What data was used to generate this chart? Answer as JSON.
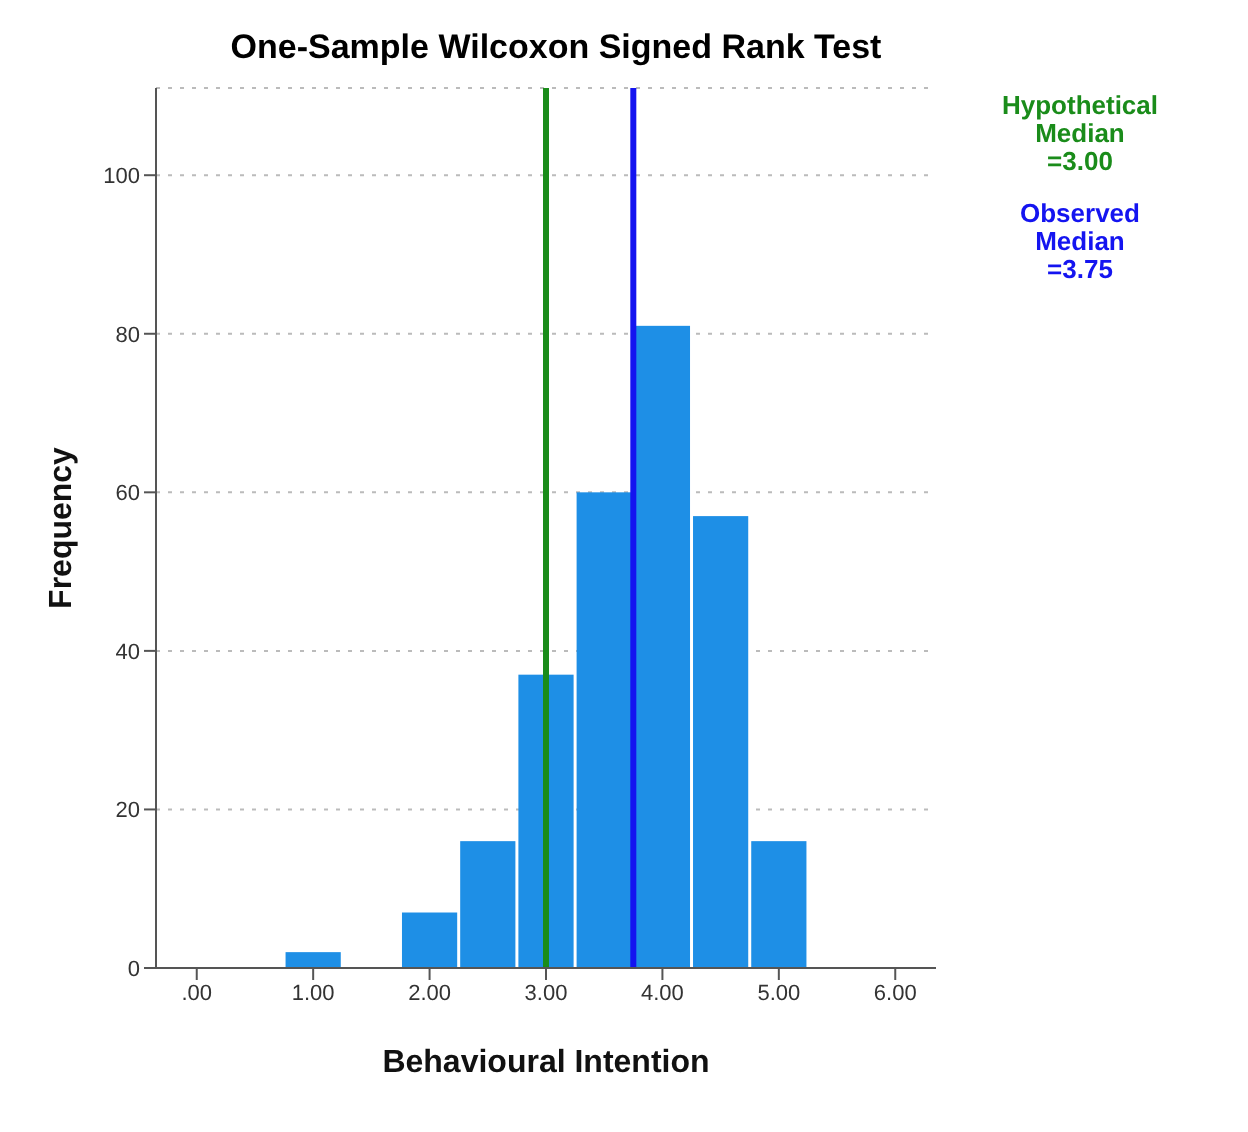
{
  "chart_data": {
    "type": "histogram",
    "title": "One-Sample Wilcoxon Signed Rank Test",
    "xlabel": "Behavioural Intention",
    "ylabel": "Frequency",
    "bins": [
      0.75,
      1.25,
      1.75,
      2.25,
      2.75,
      3.25,
      3.75,
      4.25,
      4.75,
      5.25
    ],
    "values": [
      2,
      0,
      7,
      16,
      37,
      60,
      81,
      57,
      16
    ],
    "color": "#1e8fe6",
    "xlim": [
      -0.35,
      6.35
    ],
    "xticks": [
      {
        "value": 0,
        "label": ".00"
      },
      {
        "value": 1,
        "label": "1.00"
      },
      {
        "value": 2,
        "label": "2.00"
      },
      {
        "value": 3,
        "label": "3.00"
      },
      {
        "value": 4,
        "label": "4.00"
      },
      {
        "value": 5,
        "label": "5.00"
      },
      {
        "value": 6,
        "label": "6.00"
      }
    ],
    "ylim": [
      0,
      111
    ],
    "yticks": [
      0,
      20,
      40,
      60,
      80,
      100
    ],
    "grid": "y",
    "ref_lines": [
      {
        "axis": "x",
        "value": 3,
        "label": "Hypothetical Median =3.00",
        "color": "#1a8c1a"
      },
      {
        "axis": "x",
        "value": 3.75,
        "label": "Observed Median =3.75",
        "color": "#1414f0"
      }
    ]
  }
}
